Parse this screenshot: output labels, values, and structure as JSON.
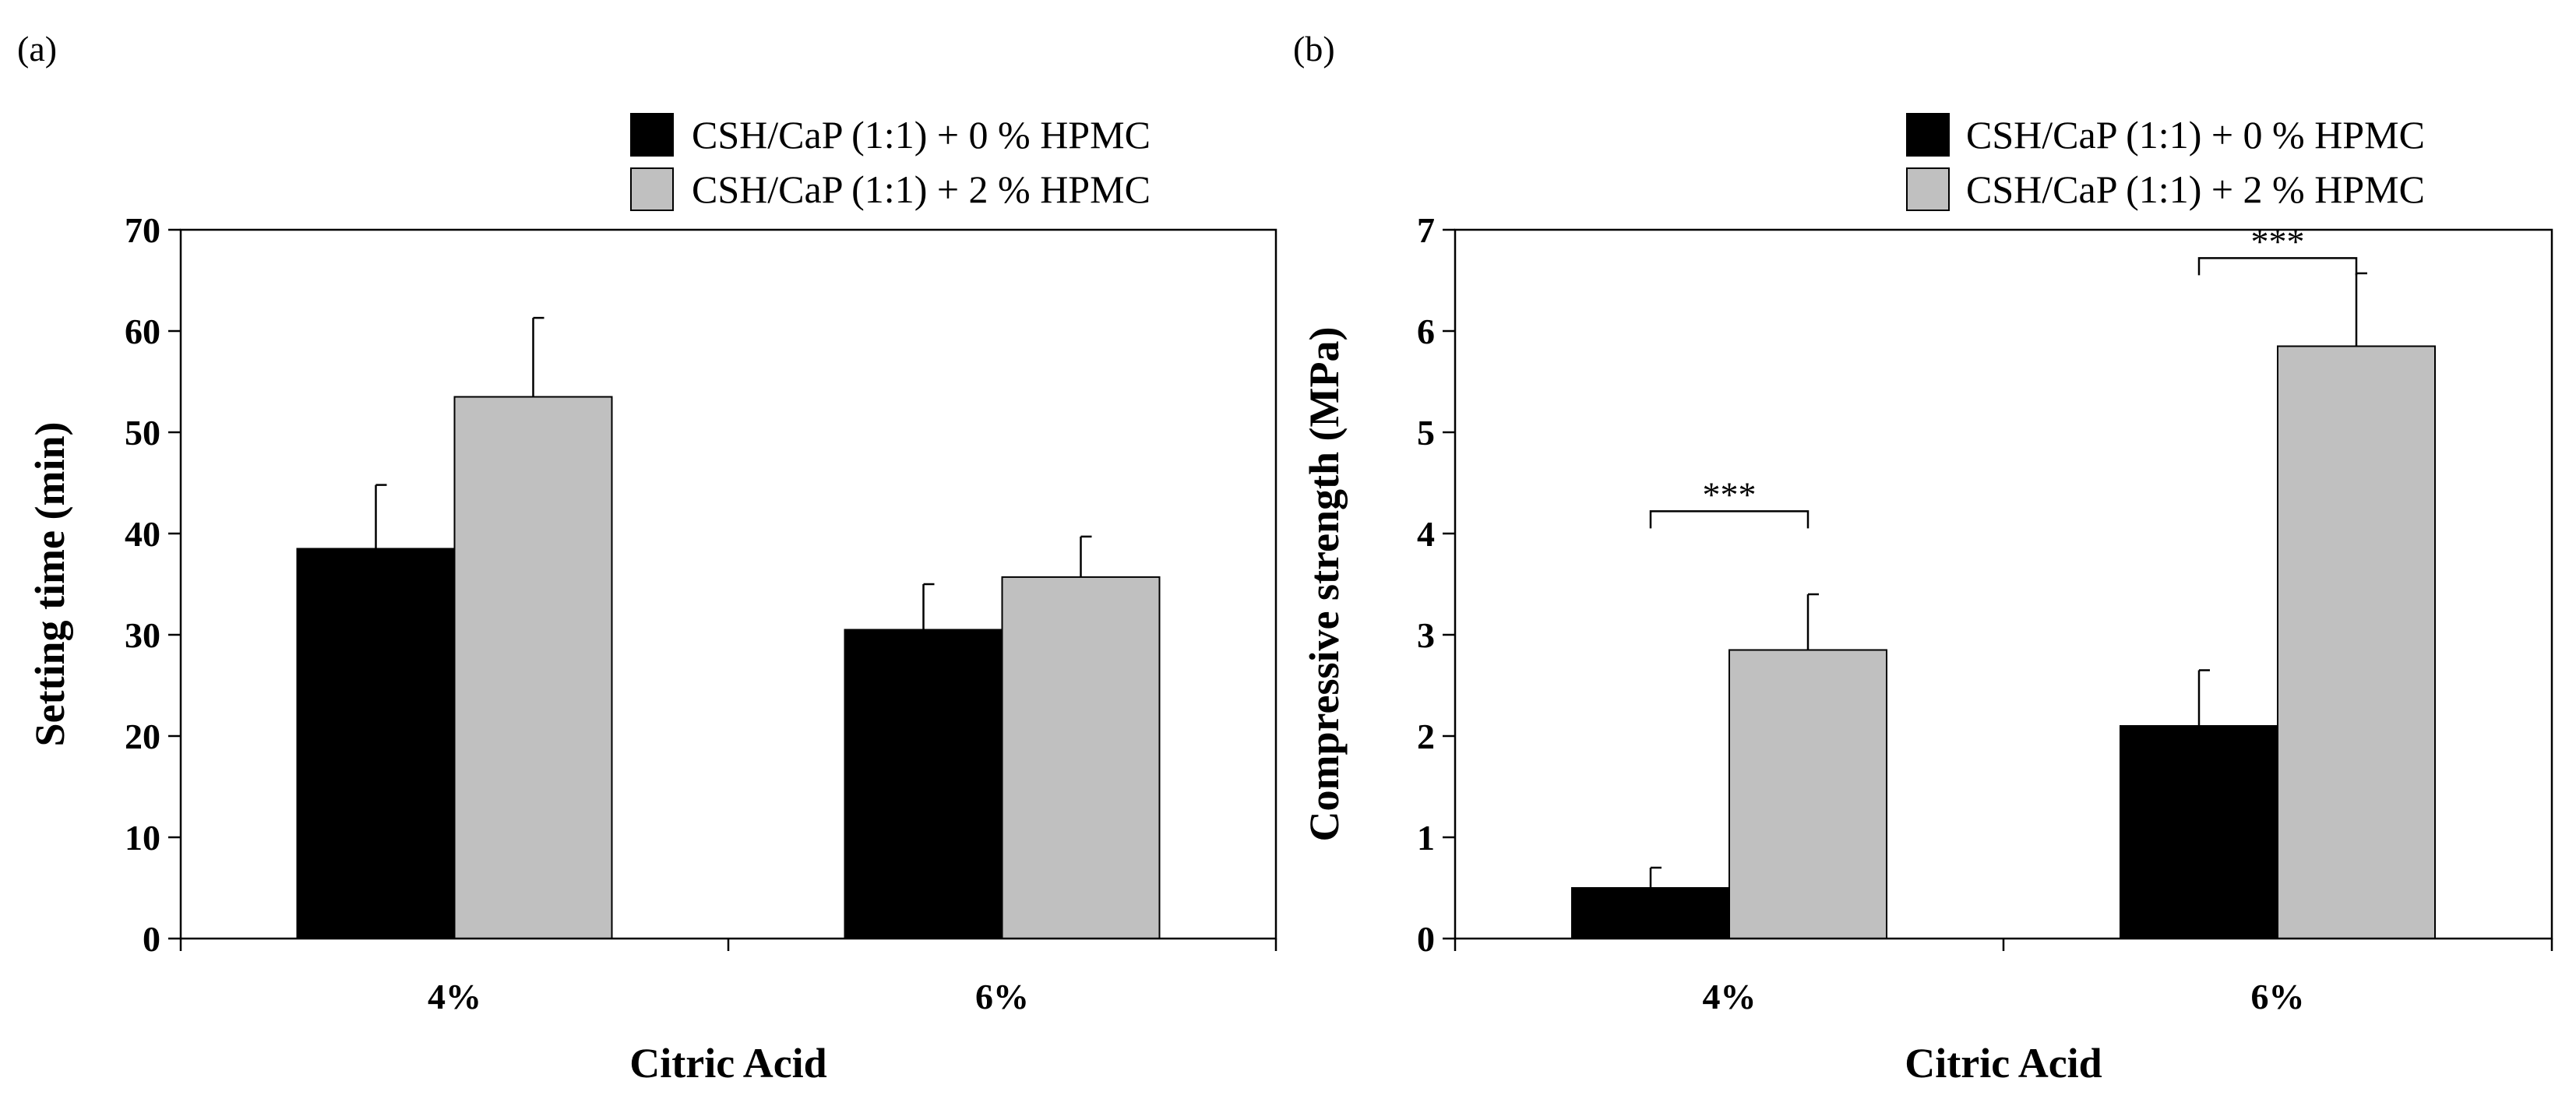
{
  "chart_data": [
    {
      "panel_label": "(a)",
      "type": "bar",
      "categories": [
        "4%",
        "6%"
      ],
      "xlabel": "Citric Acid",
      "ylabel": "Setting time (min)",
      "ylim": [
        0,
        70
      ],
      "yticks": [
        0,
        10,
        20,
        30,
        40,
        50,
        60,
        70
      ],
      "legend_position": "top-right",
      "grid": false,
      "series": [
        {
          "name": "CSH/CaP (1:1) + 0 % HPMC",
          "color": "#000000",
          "values": [
            38.5,
            30.5
          ],
          "errors": [
            6.3,
            4.5
          ]
        },
        {
          "name": "CSH/CaP (1:1) + 2 % HPMC",
          "color": "#c0c0c0",
          "values": [
            53.5,
            35.7
          ],
          "errors": [
            7.8,
            4.0
          ]
        }
      ],
      "annotations": []
    },
    {
      "panel_label": "(b)",
      "type": "bar",
      "categories": [
        "4%",
        "6%"
      ],
      "xlabel": "Citric Acid",
      "ylabel": "Compressive strength (MPa)",
      "ylim": [
        0,
        7
      ],
      "yticks": [
        0,
        1,
        2,
        3,
        4,
        5,
        6,
        7
      ],
      "legend_position": "top-right",
      "grid": false,
      "series": [
        {
          "name": "CSH/CaP (1:1) + 0 % HPMC",
          "color": "#000000",
          "values": [
            0.5,
            2.1
          ],
          "errors": [
            0.2,
            0.55
          ]
        },
        {
          "name": "CSH/CaP (1:1) + 2 % HPMC",
          "color": "#c0c0c0",
          "values": [
            2.85,
            5.85
          ],
          "errors": [
            0.55,
            0.72
          ]
        }
      ],
      "annotations": [
        {
          "text": "***",
          "category_index": 0,
          "level": 4.22
        },
        {
          "text": "***",
          "category_index": 1,
          "level": 6.72
        }
      ]
    }
  ]
}
